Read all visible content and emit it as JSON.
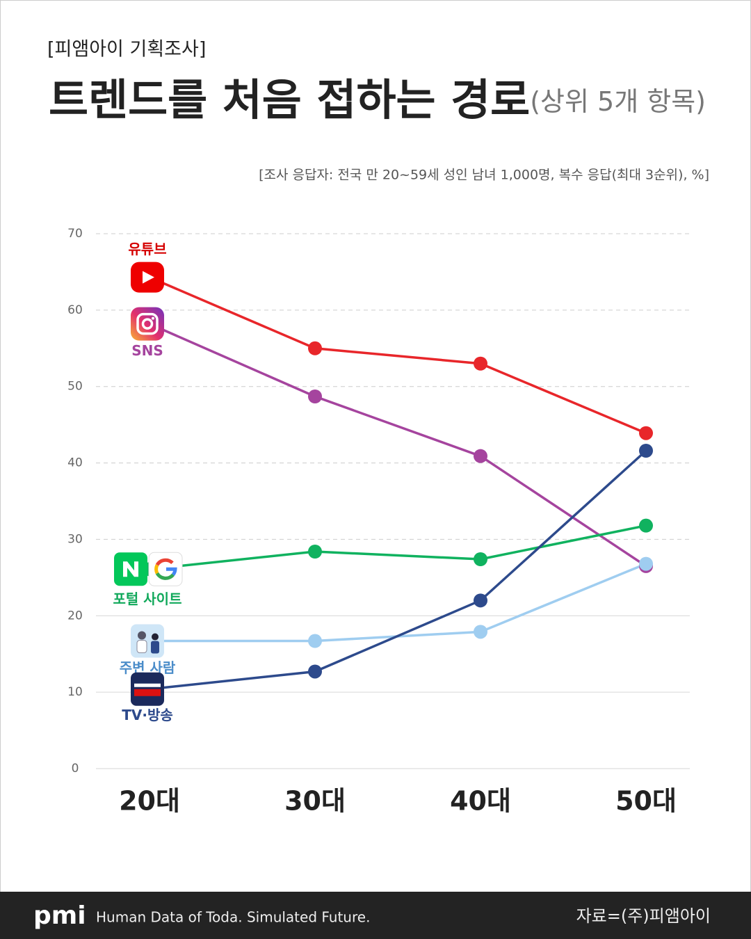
{
  "chart_data": {
    "type": "line",
    "kicker": "[피앰아이 기획조사]",
    "title": "트렌드를 처음 접하는 경로",
    "title_suffix": "(상위 5개 항목)",
    "note": "[조사 응답자: 전국 만 20~59세 성인 남녀 1,000명, 복수 응답(최대 3순위), %]",
    "categories": [
      "20대",
      "30대",
      "40대",
      "50대"
    ],
    "series": [
      {
        "name": "유튜브",
        "color": "#e8262a",
        "values": [
          64.3,
          55.0,
          53.0,
          43.9
        ]
      },
      {
        "name": "SNS",
        "color": "#a5449e",
        "values": [
          58.2,
          48.7,
          40.9,
          26.5
        ]
      },
      {
        "name": "포털 사이트",
        "color": "#10b25f",
        "values": [
          26.1,
          28.4,
          27.4,
          31.8
        ]
      },
      {
        "name": "주변 사람",
        "color": "#9fcdf0",
        "values": [
          16.7,
          16.7,
          17.9,
          26.8
        ]
      },
      {
        "name": "TV·방송",
        "color": "#2d4a8c",
        "values": [
          10.4,
          12.7,
          22.0,
          41.6
        ]
      }
    ],
    "ylim": [
      0,
      70
    ],
    "yticks": [
      0,
      10,
      20,
      30,
      40,
      50,
      60,
      70
    ],
    "grid": true
  },
  "footer": {
    "logo": "pmi",
    "slogan": "Human Data of Toda. Simulated Future.",
    "source": "자료=(주)피앰아이"
  }
}
